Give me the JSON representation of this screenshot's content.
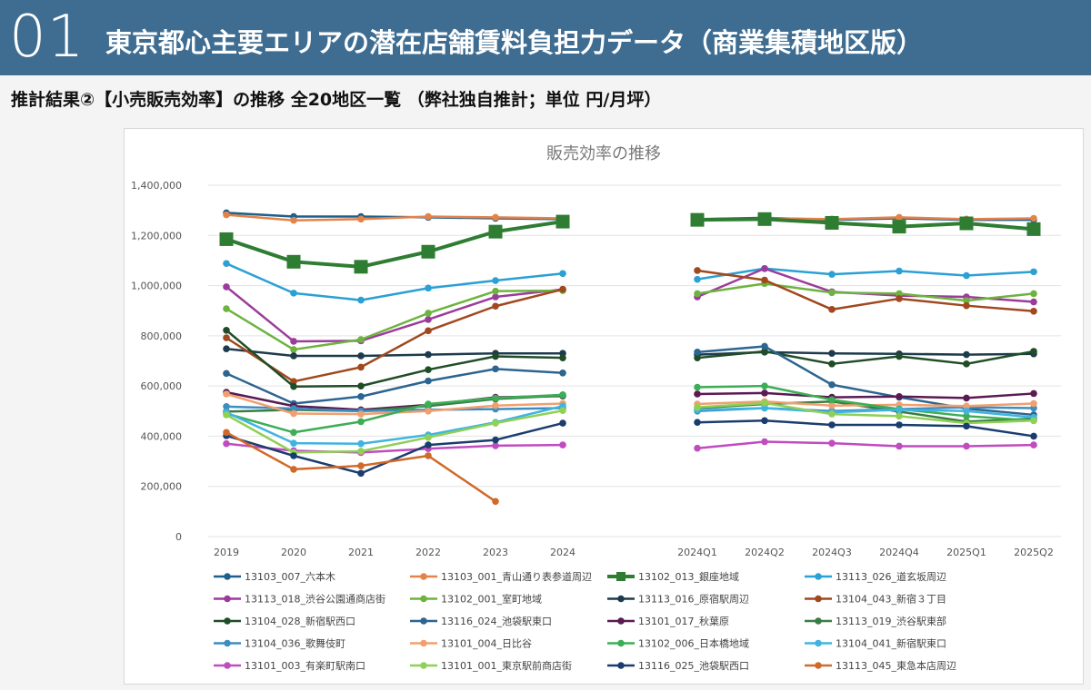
{
  "header": {
    "number": "01",
    "title": "東京都心主要エリアの潜在店舗賃料負担力データ（商業集積地区版）"
  },
  "subtitle": "推計結果②【小売販売効率】の推移 全20地区一覧 （弊社独自推計；単位 円/月坪）",
  "chart_data": {
    "type": "line",
    "title": "販売効率の推移",
    "xlabel": "",
    "ylabel": "",
    "ylim": [
      0,
      1400000
    ],
    "yticks": [
      0,
      200000,
      400000,
      600000,
      800000,
      1000000,
      1200000,
      1400000
    ],
    "ytick_labels": [
      "0",
      "200,000",
      "400,000",
      "600,000",
      "800,000",
      "1,000,000",
      "1,200,000",
      "1,400,000"
    ],
    "legend_position": "bottom",
    "groups": [
      {
        "categories": [
          "2019",
          "2020",
          "2021",
          "2022",
          "2023",
          "2024"
        ]
      },
      {
        "categories": [
          "2024Q1",
          "2024Q2",
          "2024Q3",
          "2024Q4",
          "2025Q1",
          "2025Q2"
        ]
      }
    ],
    "series": [
      {
        "name": "13103_007_六本木",
        "color": "#1f5f8b",
        "annual": [
          1290000,
          1275000,
          1275000,
          1272000,
          1268000,
          1265000
        ],
        "quarterly": [
          1265000,
          1270000,
          1262000,
          1268000,
          1262000,
          1262000
        ]
      },
      {
        "name": "13103_001_青山通り表参道周辺",
        "color": "#e3834a",
        "annual": [
          1282000,
          1260000,
          1265000,
          1275000,
          1272000,
          1268000
        ],
        "quarterly": [
          1262000,
          1268000,
          1265000,
          1272000,
          1265000,
          1268000
        ]
      },
      {
        "name": "13102_013_銀座地域",
        "color": "#2e7d32",
        "highlight": true,
        "annual": [
          1185000,
          1095000,
          1075000,
          1135000,
          1215000,
          1255000
        ],
        "quarterly": [
          1262000,
          1265000,
          1250000,
          1235000,
          1248000,
          1225000
        ]
      },
      {
        "name": "13113_026_道玄坂周辺",
        "color": "#2aa0d4",
        "annual": [
          1088000,
          970000,
          942000,
          990000,
          1020000,
          1048000
        ],
        "quarterly": [
          1025000,
          1068000,
          1045000,
          1058000,
          1040000,
          1055000
        ]
      },
      {
        "name": "13113_018_渋谷公園通商店街",
        "color": "#9b3c9a",
        "annual": [
          995000,
          778000,
          780000,
          865000,
          955000,
          985000
        ],
        "quarterly": [
          955000,
          1068000,
          975000,
          960000,
          955000,
          935000
        ]
      },
      {
        "name": "13102_001_室町地域",
        "color": "#6db33f",
        "annual": [
          908000,
          745000,
          785000,
          890000,
          978000,
          980000
        ],
        "quarterly": [
          968000,
          1008000,
          972000,
          968000,
          940000,
          968000
        ]
      },
      {
        "name": "13113_016_原宿駅周辺",
        "color": "#1d3b4d",
        "annual": [
          748000,
          720000,
          720000,
          725000,
          730000,
          730000
        ],
        "quarterly": [
          725000,
          735000,
          730000,
          728000,
          725000,
          728000
        ]
      },
      {
        "name": "13104_043_新宿３丁目",
        "color": "#a0481e",
        "annual": [
          792000,
          618000,
          675000,
          820000,
          918000,
          985000
        ],
        "quarterly": [
          1060000,
          1022000,
          905000,
          948000,
          920000,
          898000
        ]
      },
      {
        "name": "13104_028_新宿駅西口",
        "color": "#1f4d26",
        "annual": [
          822000,
          598000,
          600000,
          665000,
          718000,
          712000
        ],
        "quarterly": [
          712000,
          738000,
          688000,
          718000,
          688000,
          738000
        ]
      },
      {
        "name": "13116_024_池袋駅東口",
        "color": "#2b6590",
        "annual": [
          650000,
          530000,
          558000,
          620000,
          668000,
          652000
        ],
        "quarterly": [
          735000,
          758000,
          605000,
          555000,
          510000,
          485000
        ]
      },
      {
        "name": "13101_017_秋葉原",
        "color": "#5a1a52",
        "annual": [
          575000,
          520000,
          505000,
          525000,
          555000,
          560000
        ],
        "quarterly": [
          568000,
          572000,
          555000,
          558000,
          552000,
          570000
        ]
      },
      {
        "name": "13113_019_渋谷駅東部",
        "color": "#3a7d44",
        "annual": [
          498000,
          505000,
          500000,
          520000,
          548000,
          562000
        ],
        "quarterly": [
          512000,
          528000,
          538000,
          498000,
          458000,
          470000
        ]
      },
      {
        "name": "13104_036_歌舞伎町",
        "color": "#3d8dc0",
        "annual": [
          518000,
          510000,
          500000,
          505000,
          508000,
          512000
        ],
        "quarterly": [
          500000,
          512000,
          500000,
          508000,
          515000,
          512000
        ]
      },
      {
        "name": "13101_004_日比谷",
        "color": "#f0a070",
        "annual": [
          568000,
          490000,
          488000,
          500000,
          522000,
          530000
        ],
        "quarterly": [
          528000,
          538000,
          522000,
          525000,
          520000,
          530000
        ]
      },
      {
        "name": "13102_006_日本橋地域",
        "color": "#3cae55",
        "annual": [
          490000,
          415000,
          458000,
          528000,
          552000,
          565000
        ],
        "quarterly": [
          595000,
          600000,
          545000,
          508000,
          480000,
          462000
        ]
      },
      {
        "name": "13104_041_新宿駅東口",
        "color": "#40b4e0",
        "annual": [
          495000,
          372000,
          370000,
          405000,
          455000,
          520000
        ],
        "quarterly": [
          505000,
          512000,
          495000,
          505000,
          500000,
          475000
        ]
      },
      {
        "name": "13101_003_有楽町駅南口",
        "color": "#c04cc0",
        "annual": [
          370000,
          342000,
          335000,
          350000,
          362000,
          365000
        ],
        "quarterly": [
          352000,
          378000,
          372000,
          360000,
          360000,
          365000
        ]
      },
      {
        "name": "13101_001_東京駅前商店街",
        "color": "#8fd055",
        "annual": [
          485000,
          335000,
          340000,
          395000,
          452000,
          502000
        ],
        "quarterly": [
          515000,
          532000,
          488000,
          480000,
          452000,
          462000
        ]
      },
      {
        "name": "13116_025_池袋駅西口",
        "color": "#1b3d6e",
        "annual": [
          402000,
          322000,
          252000,
          365000,
          385000,
          452000
        ],
        "quarterly": [
          455000,
          462000,
          445000,
          445000,
          440000,
          400000
        ]
      },
      {
        "name": "13113_045_東急本店周辺",
        "color": "#d06a2a",
        "annual": [
          415000,
          268000,
          282000,
          322000,
          140000,
          null
        ],
        "quarterly": [
          null,
          null,
          null,
          null,
          null,
          null
        ]
      }
    ]
  }
}
